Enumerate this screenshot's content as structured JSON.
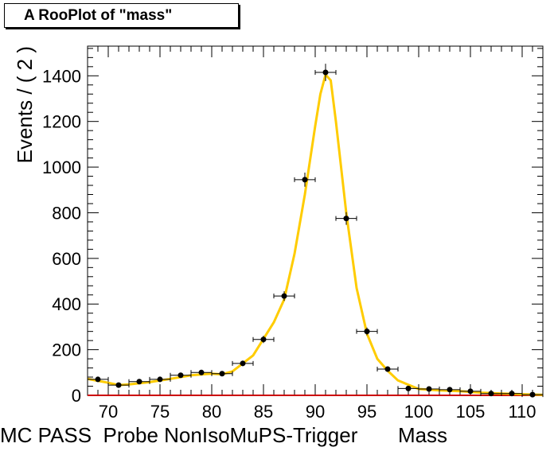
{
  "chart_data": {
    "type": "scatter",
    "title": "A RooPlot of \"mass\"",
    "xlabel": "MC PASS  Probe NonIsoMuPS-Trigger       Mass",
    "ylabel": "Events / ( 2 )",
    "xlim": [
      68,
      112
    ],
    "ylim": [
      0,
      1530
    ],
    "x_ticks": [
      70,
      75,
      80,
      85,
      90,
      95,
      100,
      105,
      110
    ],
    "y_ticks": [
      0,
      200,
      400,
      600,
      800,
      1000,
      1200,
      1400
    ],
    "grid": false,
    "legend": "none",
    "series": [
      {
        "kind": "data-points",
        "x": [
          69,
          71,
          73,
          75,
          77,
          79,
          81,
          83,
          85,
          87,
          89,
          91,
          93,
          95,
          97,
          99,
          101,
          103,
          105,
          107,
          109,
          111
        ],
        "y": [
          70,
          45,
          60,
          70,
          88,
          100,
          95,
          140,
          245,
          435,
          945,
          1415,
          775,
          280,
          115,
          30,
          28,
          25,
          18,
          8,
          8,
          3
        ],
        "errors": [
          8,
          7,
          8,
          8,
          9,
          10,
          10,
          12,
          16,
          21,
          31,
          38,
          28,
          17,
          11,
          6,
          5,
          5,
          4,
          3,
          3,
          2
        ],
        "color": "#000000"
      },
      {
        "kind": "fit-curve",
        "x": [
          68,
          70,
          71,
          72,
          74,
          76,
          78,
          80,
          81,
          82,
          84,
          86,
          87,
          88,
          89,
          90,
          90.5,
          91,
          91.5,
          92,
          93,
          94,
          95,
          96,
          97,
          98,
          100,
          102,
          104,
          106,
          108,
          110,
          112
        ],
        "y": [
          72,
          55,
          45,
          48,
          58,
          72,
          88,
          95,
          92,
          105,
          175,
          320,
          420,
          620,
          880,
          1180,
          1320,
          1405,
          1380,
          1200,
          800,
          470,
          270,
          160,
          108,
          65,
          28,
          22,
          18,
          12,
          8,
          5,
          2
        ],
        "color": "#FFCC00"
      },
      {
        "kind": "background-line",
        "x": [
          68,
          112
        ],
        "y": [
          0,
          0
        ],
        "color": "#CC0000"
      }
    ]
  }
}
